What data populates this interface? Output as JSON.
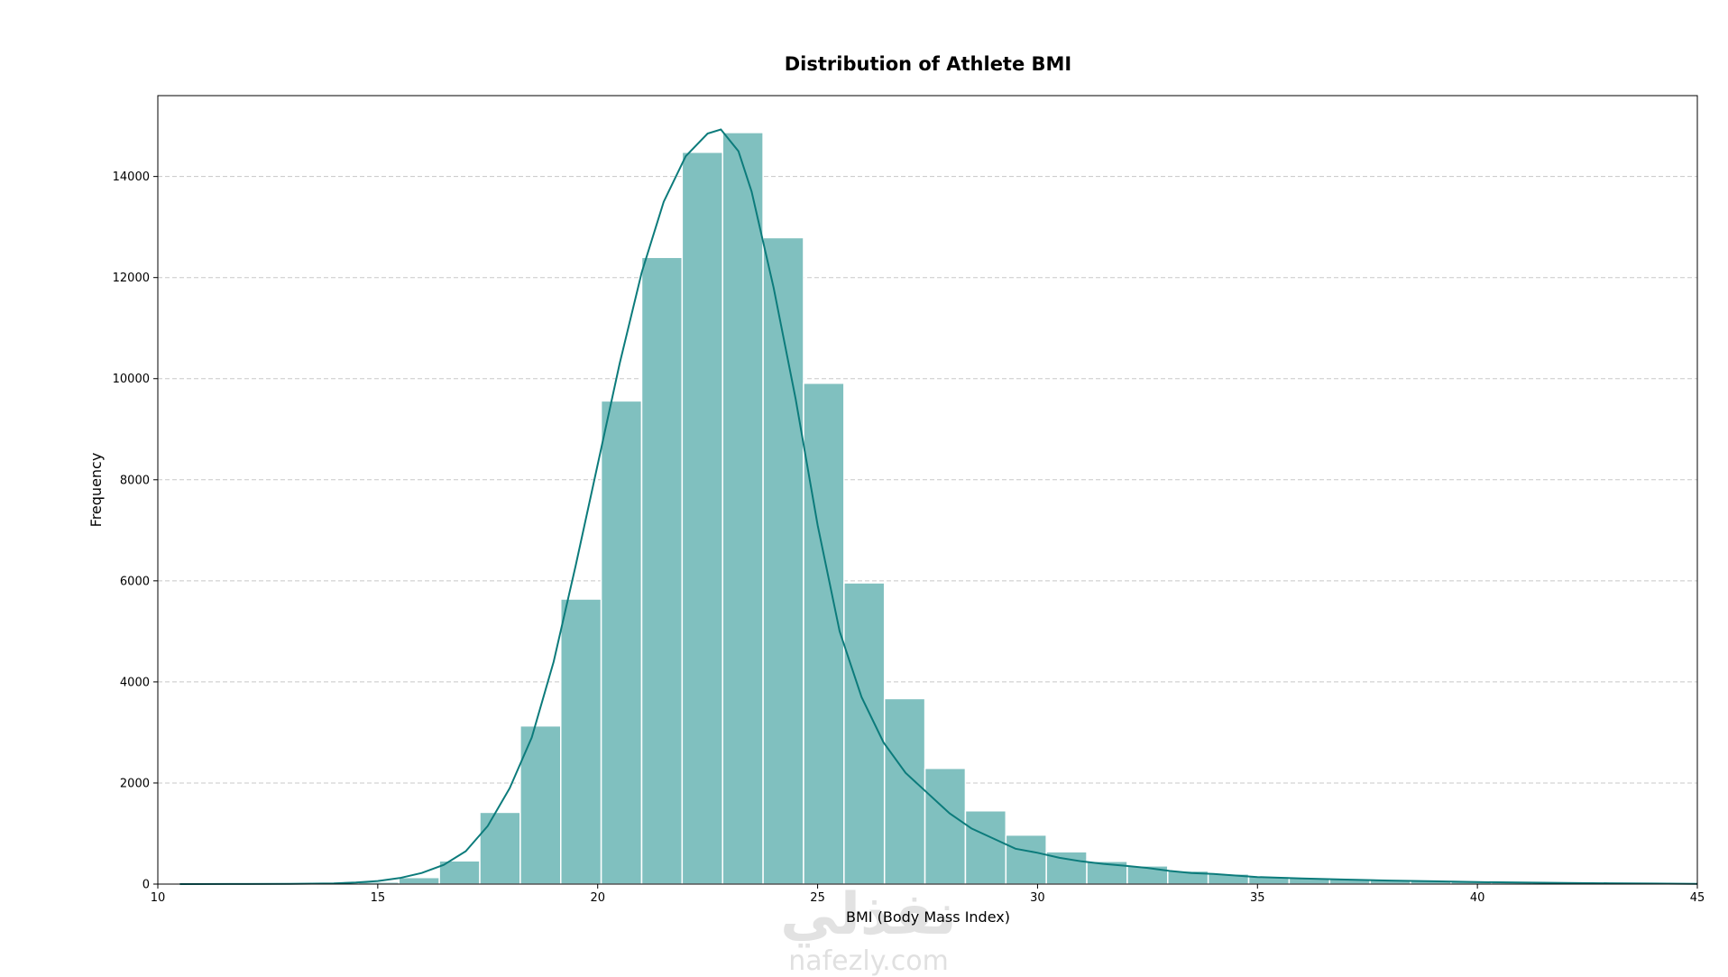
{
  "chart_data": {
    "type": "bar",
    "title": "Distribution of Athlete BMI",
    "xlabel": "BMI (Body Mass Index)",
    "ylabel": "Frequency",
    "xlim": [
      10,
      45
    ],
    "ylim": [
      0,
      15600
    ],
    "xticks": [
      10,
      15,
      20,
      25,
      30,
      35,
      40,
      45
    ],
    "yticks": [
      0,
      2000,
      4000,
      6000,
      8000,
      10000,
      12000,
      14000
    ],
    "grid": "y, dashed",
    "bin_width": 0.92,
    "bin_start": 11.8,
    "bins": [
      [
        11.8,
        10
      ],
      [
        12.72,
        15
      ],
      [
        13.64,
        20
      ],
      [
        14.56,
        40
      ],
      [
        15.48,
        130
      ],
      [
        16.4,
        460
      ],
      [
        17.32,
        1420
      ],
      [
        18.24,
        3130
      ],
      [
        19.16,
        5640
      ],
      [
        20.08,
        9560
      ],
      [
        21.0,
        12400
      ],
      [
        21.92,
        14480
      ],
      [
        22.84,
        14870
      ],
      [
        23.76,
        12790
      ],
      [
        24.68,
        9910
      ],
      [
        25.6,
        5960
      ],
      [
        26.52,
        3670
      ],
      [
        27.44,
        2290
      ],
      [
        28.36,
        1450
      ],
      [
        29.28,
        970
      ],
      [
        30.2,
        640
      ],
      [
        31.12,
        450
      ],
      [
        32.04,
        360
      ],
      [
        32.96,
        260
      ],
      [
        33.88,
        200
      ],
      [
        34.8,
        150
      ],
      [
        35.72,
        120
      ],
      [
        36.64,
        100
      ],
      [
        37.56,
        80
      ],
      [
        38.48,
        70
      ],
      [
        39.4,
        50
      ],
      [
        40.32,
        40
      ],
      [
        41.24,
        35
      ],
      [
        42.16,
        30
      ],
      [
        43.08,
        25
      ],
      [
        44.0,
        20
      ]
    ],
    "kde": [
      [
        10.5,
        0
      ],
      [
        12,
        2
      ],
      [
        13,
        5
      ],
      [
        14,
        15
      ],
      [
        14.5,
        30
      ],
      [
        15,
        60
      ],
      [
        15.5,
        120
      ],
      [
        16,
        220
      ],
      [
        16.5,
        380
      ],
      [
        17,
        650
      ],
      [
        17.5,
        1150
      ],
      [
        18,
        1900
      ],
      [
        18.5,
        2900
      ],
      [
        19,
        4400
      ],
      [
        19.5,
        6300
      ],
      [
        20,
        8300
      ],
      [
        20.5,
        10300
      ],
      [
        21,
        12100
      ],
      [
        21.5,
        13500
      ],
      [
        22,
        14400
      ],
      [
        22.5,
        14850
      ],
      [
        22.8,
        14930
      ],
      [
        23.2,
        14500
      ],
      [
        23.5,
        13700
      ],
      [
        24,
        11800
      ],
      [
        24.5,
        9600
      ],
      [
        25,
        7100
      ],
      [
        25.5,
        5000
      ],
      [
        26,
        3700
      ],
      [
        26.5,
        2800
      ],
      [
        27,
        2200
      ],
      [
        27.5,
        1800
      ],
      [
        28,
        1400
      ],
      [
        28.5,
        1100
      ],
      [
        29,
        900
      ],
      [
        29.5,
        700
      ],
      [
        30,
        620
      ],
      [
        30.5,
        520
      ],
      [
        31,
        450
      ],
      [
        31.5,
        400
      ],
      [
        32,
        360
      ],
      [
        32.5,
        320
      ],
      [
        33,
        260
      ],
      [
        33.5,
        220
      ],
      [
        34,
        200
      ],
      [
        34.5,
        170
      ],
      [
        35,
        140
      ],
      [
        36,
        110
      ],
      [
        37,
        90
      ],
      [
        38,
        70
      ],
      [
        39,
        55
      ],
      [
        40,
        40
      ],
      [
        41,
        30
      ],
      [
        42,
        22
      ],
      [
        43,
        16
      ],
      [
        44,
        10
      ],
      [
        45,
        5
      ]
    ],
    "bar_color": "#80c0bf",
    "bar_edge_color": "#ffffff",
    "kde_color": "#0c7b7b"
  },
  "watermark": {
    "arabic": "نفذلي",
    "latin": "nafezly.com"
  }
}
